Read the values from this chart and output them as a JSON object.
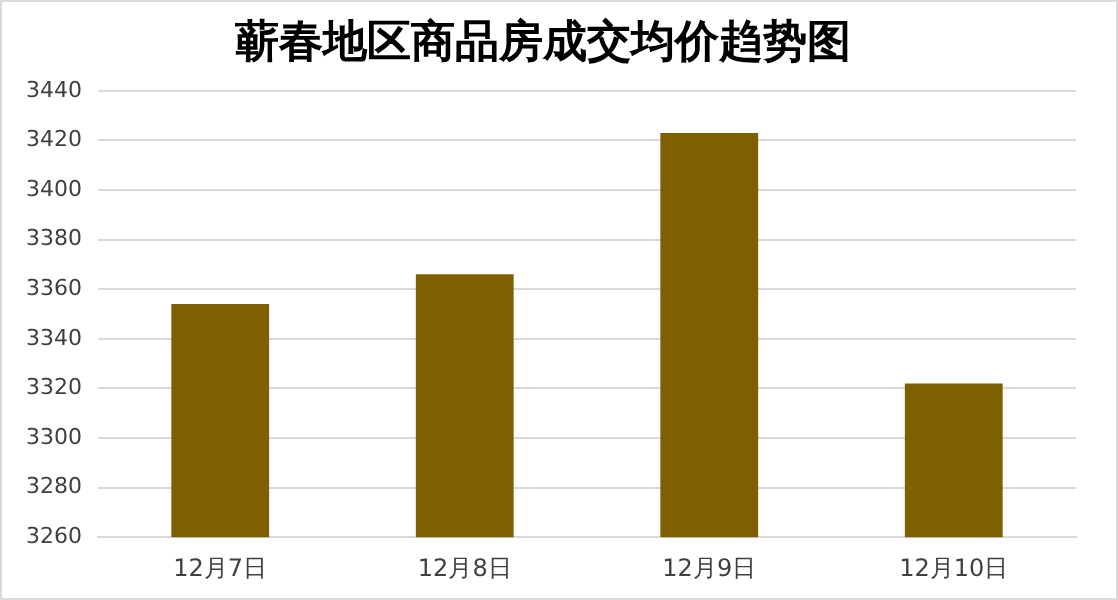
{
  "chart_data": {
    "type": "bar",
    "title": "蕲春地区商品房成交均价趋势图",
    "categories": [
      "12月7日",
      "12月8日",
      "12月9日",
      "12月10日"
    ],
    "values": [
      3354,
      3366,
      3423,
      3322
    ],
    "color": "#7f6000",
    "ylim": [
      3260,
      3440
    ],
    "yticks": [
      3260,
      3280,
      3300,
      3320,
      3340,
      3360,
      3380,
      3400,
      3420,
      3440
    ],
    "grid": "y"
  }
}
